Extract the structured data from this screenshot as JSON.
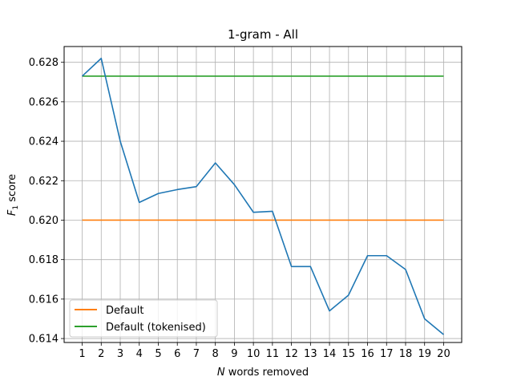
{
  "chart_data": {
    "type": "line",
    "title": "1-gram - All",
    "xlabel_italic": "N",
    "xlabel_rest": " words removed",
    "ylabel_main": "F",
    "ylabel_sub": "1",
    "ylabel_rest": " score",
    "x": [
      1,
      2,
      3,
      4,
      5,
      6,
      7,
      8,
      9,
      10,
      11,
      12,
      13,
      14,
      15,
      16,
      17,
      18,
      19,
      20
    ],
    "xlim": [
      0.05,
      20.95
    ],
    "ylim": [
      0.6138,
      0.6288
    ],
    "yticks": [
      0.614,
      0.616,
      0.618,
      0.62,
      0.622,
      0.624,
      0.626,
      0.628
    ],
    "ytick_labels": [
      "0.614",
      "0.616",
      "0.618",
      "0.620",
      "0.622",
      "0.624",
      "0.626",
      "0.628"
    ],
    "grid": true,
    "legend_position": "lower-left",
    "series": [
      {
        "key": "main",
        "color": "#1f77b4",
        "values": [
          0.6273,
          0.6282,
          0.624,
          0.6209,
          0.62135,
          0.62155,
          0.6217,
          0.6229,
          0.6218,
          0.6204,
          0.62045,
          0.61765,
          0.61765,
          0.6154,
          0.6162,
          0.6182,
          0.6182,
          0.6175,
          0.615,
          0.6142
        ]
      },
      {
        "key": "default",
        "name": "Default",
        "color": "#ff7f0e",
        "values": [
          0.62,
          0.62,
          0.62,
          0.62,
          0.62,
          0.62,
          0.62,
          0.62,
          0.62,
          0.62,
          0.62,
          0.62,
          0.62,
          0.62,
          0.62,
          0.62,
          0.62,
          0.62,
          0.62,
          0.62
        ]
      },
      {
        "key": "default-tokenised",
        "name": "Default (tokenised)",
        "color": "#2ca02c",
        "values": [
          0.6273,
          0.6273,
          0.6273,
          0.6273,
          0.6273,
          0.6273,
          0.6273,
          0.6273,
          0.6273,
          0.6273,
          0.6273,
          0.6273,
          0.6273,
          0.6273,
          0.6273,
          0.6273,
          0.6273,
          0.6273,
          0.6273,
          0.6273
        ]
      }
    ]
  }
}
